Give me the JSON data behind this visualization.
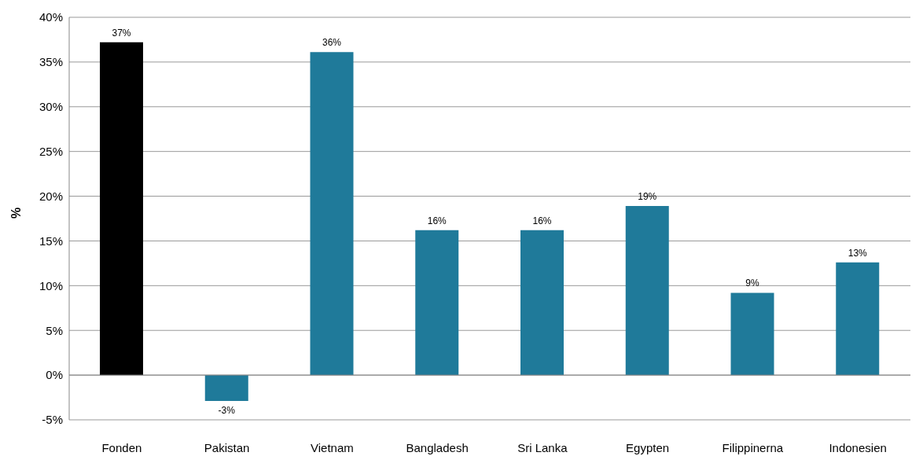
{
  "chart_data": {
    "type": "bar",
    "ylabel": "%",
    "categories": [
      "Fonden",
      "Pakistan",
      "Vietnam",
      "Bangladesh",
      "Sri Lanka",
      "Egypten",
      "Filippinerna",
      "Indonesien"
    ],
    "values": [
      37.2,
      -2.9,
      36.1,
      16.2,
      16.2,
      18.9,
      9.2,
      12.6
    ],
    "value_labels": [
      "37%",
      "-3%",
      "36%",
      "16%",
      "16%",
      "19%",
      "9%",
      "13%"
    ],
    "colors": [
      "#000000",
      "#1f7a9a",
      "#1f7a9a",
      "#1f7a9a",
      "#1f7a9a",
      "#1f7a9a",
      "#1f7a9a",
      "#1f7a9a"
    ],
    "ylim": [
      -5,
      40
    ],
    "yticks": [
      {
        "value": -5,
        "label": "-5%"
      },
      {
        "value": 0,
        "label": "0%"
      },
      {
        "value": 5,
        "label": "5%"
      },
      {
        "value": 10,
        "label": "10%"
      },
      {
        "value": 15,
        "label": "15%"
      },
      {
        "value": 20,
        "label": "20%"
      },
      {
        "value": 25,
        "label": "25%"
      },
      {
        "value": 30,
        "label": "30%"
      },
      {
        "value": 35,
        "label": "35%"
      },
      {
        "value": 40,
        "label": "40%"
      }
    ],
    "grid": "y",
    "legend": false
  }
}
